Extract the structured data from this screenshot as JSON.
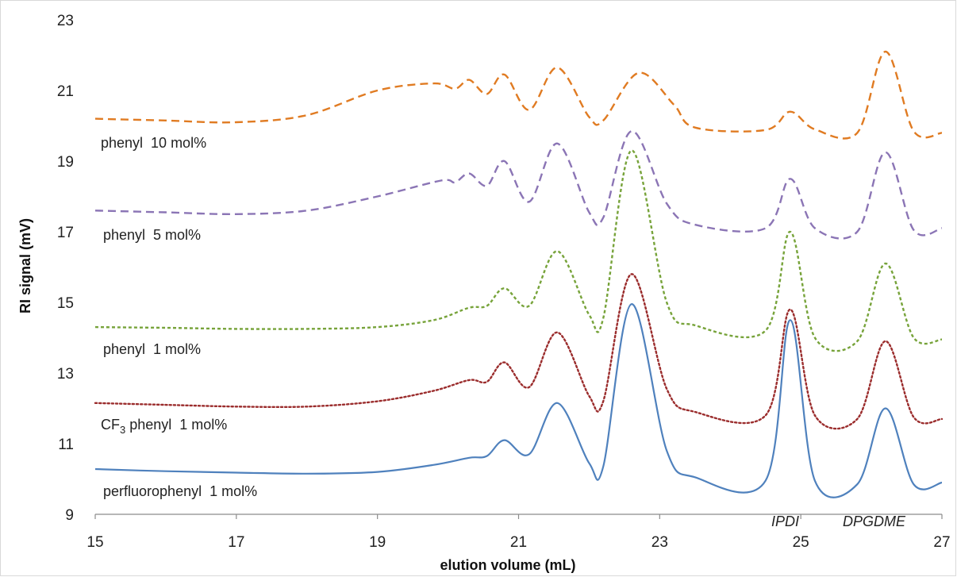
{
  "chart_data": {
    "type": "line",
    "xlabel": "elution volume (mL)",
    "ylabel": "RI signal (mV)",
    "xlim": [
      15,
      27
    ],
    "ylim": [
      9,
      23
    ],
    "x_ticks": [
      15,
      17,
      19,
      21,
      23,
      25,
      27
    ],
    "y_ticks": [
      9,
      11,
      13,
      15,
      17,
      19,
      21,
      23
    ],
    "x_tick_labels": [
      "15",
      "17",
      "19",
      "21",
      "23",
      "25",
      "27"
    ],
    "y_tick_labels": [
      "9",
      "11",
      "13",
      "15",
      "17",
      "19",
      "21",
      "23"
    ],
    "grid": false,
    "series": [
      {
        "name": "phenyl 10 mol%",
        "color": "#E07B22",
        "style": "dash",
        "points": [
          [
            15,
            20.2
          ],
          [
            16,
            20.15
          ],
          [
            17,
            20.1
          ],
          [
            18,
            20.3
          ],
          [
            19,
            21.0
          ],
          [
            19.8,
            21.2
          ],
          [
            20.1,
            21.05
          ],
          [
            20.3,
            21.3
          ],
          [
            20.55,
            20.9
          ],
          [
            20.8,
            21.45
          ],
          [
            21.15,
            20.45
          ],
          [
            21.55,
            21.65
          ],
          [
            22.0,
            20.25
          ],
          [
            22.2,
            20.15
          ],
          [
            22.7,
            21.5
          ],
          [
            23.2,
            20.6
          ],
          [
            23.5,
            19.95
          ],
          [
            24.5,
            19.88
          ],
          [
            24.85,
            20.4
          ],
          [
            25.2,
            19.9
          ],
          [
            25.8,
            19.8
          ],
          [
            26.2,
            22.1
          ],
          [
            26.6,
            19.85
          ],
          [
            27,
            19.8
          ]
        ]
      },
      {
        "name": "phenyl 5 mol%",
        "color": "#8B75B5",
        "style": "dash",
        "points": [
          [
            15,
            17.6
          ],
          [
            16,
            17.55
          ],
          [
            17,
            17.5
          ],
          [
            18,
            17.6
          ],
          [
            19,
            18.0
          ],
          [
            19.9,
            18.45
          ],
          [
            20.1,
            18.4
          ],
          [
            20.3,
            18.65
          ],
          [
            20.55,
            18.3
          ],
          [
            20.8,
            19.0
          ],
          [
            21.15,
            17.85
          ],
          [
            21.55,
            19.5
          ],
          [
            22.0,
            17.55
          ],
          [
            22.2,
            17.4
          ],
          [
            22.6,
            19.85
          ],
          [
            23.1,
            17.8
          ],
          [
            23.5,
            17.2
          ],
          [
            24.5,
            17.1
          ],
          [
            24.85,
            18.5
          ],
          [
            25.2,
            17.1
          ],
          [
            25.8,
            17.0
          ],
          [
            26.2,
            19.25
          ],
          [
            26.6,
            17.05
          ],
          [
            27,
            17.1
          ]
        ]
      },
      {
        "name": "phenyl 1 mol%",
        "color": "#77A33A",
        "style": "dense-dash",
        "points": [
          [
            15,
            14.3
          ],
          [
            16,
            14.28
          ],
          [
            17,
            14.25
          ],
          [
            18,
            14.25
          ],
          [
            19,
            14.3
          ],
          [
            19.8,
            14.5
          ],
          [
            20.3,
            14.85
          ],
          [
            20.55,
            14.9
          ],
          [
            20.8,
            15.4
          ],
          [
            21.15,
            14.9
          ],
          [
            21.55,
            16.45
          ],
          [
            22.0,
            14.65
          ],
          [
            22.2,
            14.55
          ],
          [
            22.6,
            19.3
          ],
          [
            23.1,
            15.0
          ],
          [
            23.5,
            14.35
          ],
          [
            24.5,
            14.2
          ],
          [
            24.85,
            17.0
          ],
          [
            25.2,
            14.0
          ],
          [
            25.8,
            13.9
          ],
          [
            26.2,
            16.1
          ],
          [
            26.6,
            14.0
          ],
          [
            27,
            13.95
          ]
        ]
      },
      {
        "name": "CF3 phenyl 1 mol%",
        "color": "#9B2D2D",
        "style": "dot",
        "points": [
          [
            15,
            12.15
          ],
          [
            16,
            12.1
          ],
          [
            17,
            12.05
          ],
          [
            18,
            12.05
          ],
          [
            19,
            12.2
          ],
          [
            19.8,
            12.5
          ],
          [
            20.3,
            12.8
          ],
          [
            20.55,
            12.75
          ],
          [
            20.8,
            13.3
          ],
          [
            21.15,
            12.6
          ],
          [
            21.55,
            14.15
          ],
          [
            22.0,
            12.35
          ],
          [
            22.2,
            12.2
          ],
          [
            22.6,
            15.8
          ],
          [
            23.1,
            12.55
          ],
          [
            23.5,
            11.9
          ],
          [
            24.5,
            11.8
          ],
          [
            24.85,
            14.8
          ],
          [
            25.2,
            11.8
          ],
          [
            25.8,
            11.7
          ],
          [
            26.2,
            13.9
          ],
          [
            26.6,
            11.75
          ],
          [
            27,
            11.7
          ]
        ]
      },
      {
        "name": "perfluorophenyl 1 mol%",
        "color": "#4F81BD",
        "style": "solid",
        "points": [
          [
            15,
            10.28
          ],
          [
            16,
            10.22
          ],
          [
            17,
            10.18
          ],
          [
            18,
            10.15
          ],
          [
            19,
            10.2
          ],
          [
            19.8,
            10.4
          ],
          [
            20.3,
            10.6
          ],
          [
            20.55,
            10.65
          ],
          [
            20.8,
            11.1
          ],
          [
            21.15,
            10.7
          ],
          [
            21.55,
            12.15
          ],
          [
            22.0,
            10.45
          ],
          [
            22.2,
            10.35
          ],
          [
            22.6,
            14.95
          ],
          [
            23.1,
            10.8
          ],
          [
            23.5,
            10.05
          ],
          [
            24.5,
            9.95
          ],
          [
            24.85,
            14.5
          ],
          [
            25.2,
            9.95
          ],
          [
            25.8,
            9.85
          ],
          [
            26.2,
            12.0
          ],
          [
            26.6,
            9.85
          ],
          [
            27,
            9.9
          ]
        ]
      }
    ],
    "series_labels": {
      "s0": "phenyl  10 mol%",
      "s1": "phenyl  5 mol%",
      "s2": "phenyl  1 mol%",
      "s3_pre": "CF",
      "s3_sub": "3",
      "s3_post": " phenyl  1 mol%",
      "s4": "perfluorophenyl  1 mol%"
    },
    "annotations": [
      "IPDI",
      "DPGDME"
    ]
  }
}
